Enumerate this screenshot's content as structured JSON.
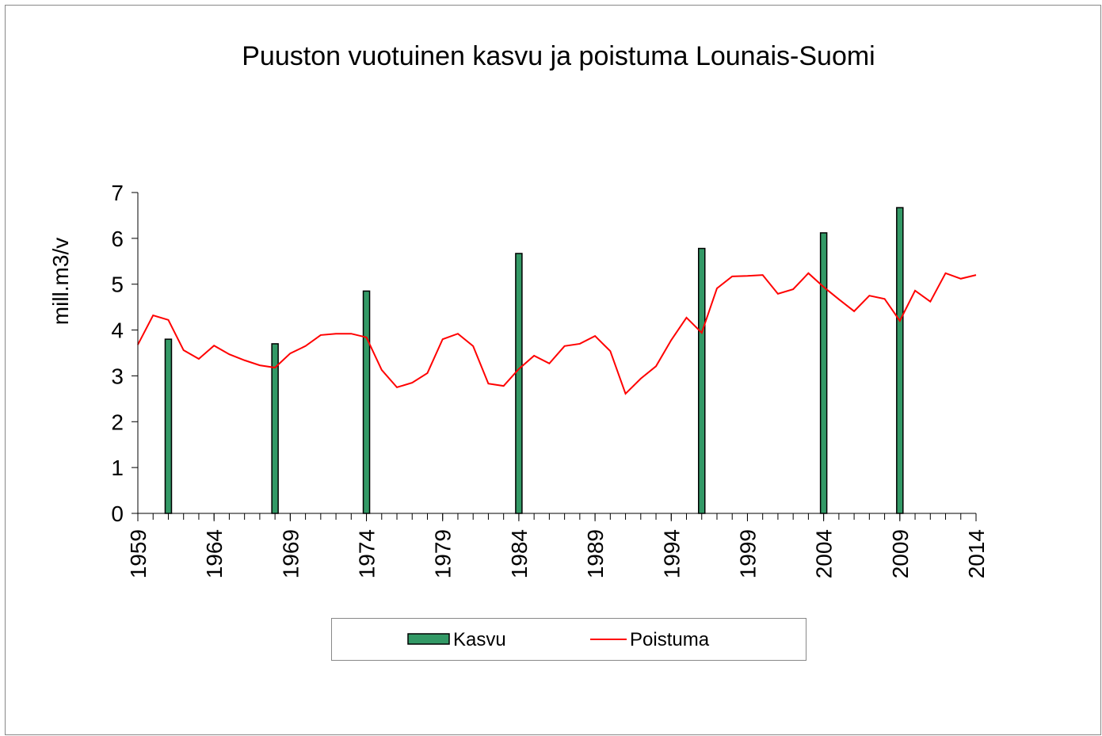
{
  "chart_data": {
    "type": "combo",
    "title": "Puuston vuotuinen kasvu ja poistuma Lounais-Suomi",
    "ylabel": "mill.m3/v",
    "xlim": [
      1959,
      2014
    ],
    "xticks": [
      1959,
      1964,
      1969,
      1974,
      1979,
      1984,
      1989,
      1994,
      1999,
      2004,
      2009,
      2014
    ],
    "ylim": [
      0,
      7
    ],
    "yticks": [
      0,
      1,
      2,
      3,
      4,
      5,
      6,
      7
    ],
    "grid": false,
    "legend": "bottom",
    "series": [
      {
        "name": "Kasvu",
        "type": "bar",
        "color": "#339966",
        "x": [
          1961,
          1968,
          1974,
          1984,
          1996,
          2004,
          2009
        ],
        "values": [
          3.8,
          3.7,
          4.85,
          5.67,
          5.78,
          6.12,
          6.67
        ]
      },
      {
        "name": "Poistuma",
        "type": "line",
        "color": "#ff0000",
        "x": [
          1959,
          1960,
          1961,
          1962,
          1963,
          1964,
          1965,
          1966,
          1967,
          1968,
          1969,
          1970,
          1971,
          1972,
          1973,
          1974,
          1975,
          1976,
          1977,
          1978,
          1979,
          1980,
          1981,
          1982,
          1983,
          1984,
          1985,
          1986,
          1987,
          1988,
          1989,
          1990,
          1991,
          1992,
          1993,
          1994,
          1995,
          1996,
          1997,
          1998,
          1999,
          2000,
          2001,
          2002,
          2003,
          2004,
          2005,
          2006,
          2007,
          2008,
          2009,
          2010,
          2011,
          2012,
          2013,
          2014
        ],
        "values": [
          3.68,
          4.32,
          4.22,
          3.56,
          3.37,
          3.66,
          3.47,
          3.34,
          3.23,
          3.18,
          3.49,
          3.65,
          3.89,
          3.92,
          3.92,
          3.84,
          3.13,
          2.75,
          2.85,
          3.06,
          3.8,
          3.92,
          3.65,
          2.83,
          2.78,
          3.15,
          3.44,
          3.27,
          3.65,
          3.7,
          3.87,
          3.54,
          2.61,
          2.94,
          3.21,
          3.78,
          4.27,
          3.94,
          4.91,
          5.17,
          5.18,
          5.2,
          4.79,
          4.89,
          5.24,
          4.94,
          4.67,
          4.41,
          4.75,
          4.68,
          4.2,
          4.86,
          4.62,
          5.24,
          5.12,
          5.2
        ]
      }
    ]
  }
}
